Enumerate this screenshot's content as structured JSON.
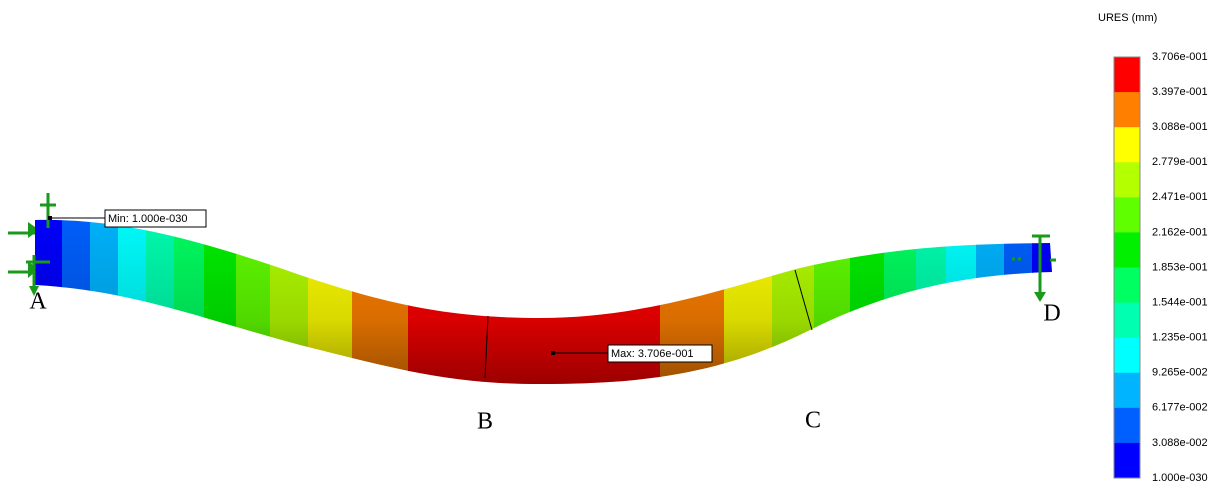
{
  "legend": {
    "title": "URES (mm)",
    "labels": [
      "3.706e-001",
      "3.397e-001",
      "3.088e-001",
      "2.779e-001",
      "2.471e-001",
      "2.162e-001",
      "1.853e-001",
      "1.544e-001",
      "1.235e-001",
      "9.265e-002",
      "6.177e-002",
      "3.088e-002",
      "1.000e-030"
    ]
  },
  "annotations": {
    "min": "Min: 1.000e-030",
    "max": "Max: 3.706e-001"
  },
  "points": [
    "A",
    "B",
    "C",
    "D"
  ]
}
